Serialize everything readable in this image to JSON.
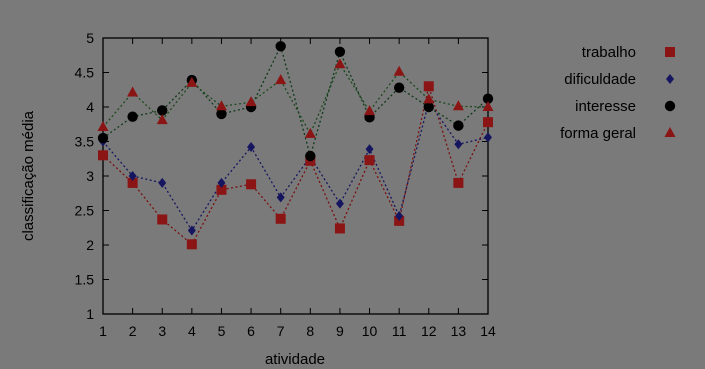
{
  "chart_data": {
    "type": "scatter",
    "xlabel": "atividade",
    "ylabel": "classificação média",
    "x": [
      1,
      2,
      3,
      4,
      5,
      6,
      7,
      8,
      9,
      10,
      11,
      12,
      13,
      14
    ],
    "xlim": [
      1,
      14
    ],
    "ylim": [
      1,
      5
    ],
    "yticks": [
      "1",
      "1.5",
      "2",
      "2.5",
      "3",
      "3.5",
      "4",
      "4.5",
      "5"
    ],
    "xticks": [
      "1",
      "2",
      "3",
      "4",
      "5",
      "6",
      "7",
      "8",
      "9",
      "10",
      "11",
      "12",
      "13",
      "14"
    ],
    "line_style": "dotted",
    "legend_position": "top-right",
    "series": [
      {
        "name": "trabalho",
        "marker": "square",
        "color": "#8b1414",
        "values": [
          3.3,
          2.9,
          2.37,
          2.01,
          2.8,
          2.88,
          2.38,
          3.22,
          2.24,
          3.23,
          2.35,
          4.3,
          2.9,
          3.78
        ]
      },
      {
        "name": "dificuldade",
        "marker": "diamond",
        "color": "#161660",
        "values": [
          3.5,
          3.0,
          2.9,
          2.21,
          2.9,
          3.42,
          2.69,
          3.28,
          2.6,
          3.39,
          2.42,
          4.07,
          3.46,
          3.56
        ]
      },
      {
        "name": "interesse",
        "marker": "circle",
        "color": "#000000",
        "values": [
          3.55,
          3.86,
          3.95,
          4.39,
          3.9,
          4.0,
          4.88,
          3.29,
          4.8,
          3.85,
          4.28,
          4.0,
          3.73,
          4.12
        ]
      },
      {
        "name": "forma geral",
        "marker": "triangle",
        "color": "#8b1414",
        "values": [
          3.71,
          4.21,
          3.81,
          4.35,
          4.01,
          4.07,
          4.39,
          3.61,
          4.62,
          3.94,
          4.51,
          4.11,
          4.01,
          4.0
        ]
      }
    ],
    "line_colors": [
      "#7a1010",
      "#161660",
      "#0e3a1a",
      "#1c4a1c"
    ]
  }
}
